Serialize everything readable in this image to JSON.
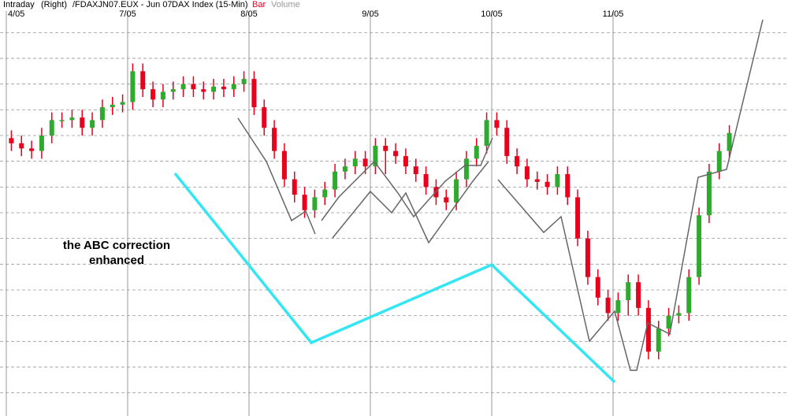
{
  "chart_data": {
    "type": "candlestick",
    "header": [
      "Intraday",
      "(Right)",
      "/FDAXJN07.EUX - Jun 07",
      "DAX Index (15-Min)",
      "Bar",
      "Volume"
    ],
    "annotation": [
      "the ABC correction",
      "enhanced"
    ],
    "categories": [
      "4/05",
      null,
      null,
      null,
      null,
      null,
      null,
      null,
      null,
      null,
      null,
      null,
      "7/05",
      null,
      null,
      null,
      null,
      null,
      null,
      null,
      null,
      null,
      null,
      null,
      "8/05",
      null,
      null,
      null,
      null,
      null,
      null,
      null,
      null,
      null,
      null,
      null,
      "9/05",
      null,
      null,
      null,
      null,
      null,
      null,
      null,
      null,
      null,
      null,
      null,
      "10/05",
      null,
      null,
      null,
      null,
      null,
      null,
      null,
      null,
      null,
      null,
      null,
      "11/05",
      null,
      null,
      null,
      null,
      null,
      null,
      null,
      null,
      null,
      null,
      null
    ],
    "open": [
      7519,
      7517,
      7515,
      7514,
      7520,
      7526,
      7526,
      7527,
      7523,
      7526,
      7531,
      7532,
      7533,
      7545,
      7538,
      7534,
      7537,
      7538,
      7540,
      7538,
      7537,
      7539,
      7538,
      7540,
      7542,
      7531,
      7523,
      7514,
      7503,
      7497,
      7491,
      7496,
      7499,
      7506,
      7508,
      7511,
      7508,
      7516,
      7514,
      7512,
      7508,
      7505,
      7500,
      7496,
      7494,
      7503,
      7511,
      7516,
      7526,
      7523,
      7512,
      7508,
      7503,
      7502,
      7500,
      7505,
      7496,
      7480,
      7465,
      7457,
      7451,
      7456,
      7463,
      7453,
      7436,
      7445,
      7450,
      7451,
      7465,
      7489,
      7506,
      7514
    ],
    "high": [
      7522,
      7520,
      7518,
      7523,
      7529,
      7529,
      7530,
      7530,
      7529,
      7534,
      7535,
      7536,
      7548,
      7548,
      7541,
      7540,
      7541,
      7543,
      7543,
      7541,
      7542,
      7542,
      7543,
      7545,
      7545,
      7534,
      7526,
      7517,
      7506,
      7500,
      7499,
      7502,
      7509,
      7511,
      7514,
      7514,
      7519,
      7519,
      7517,
      7515,
      7511,
      7508,
      7503,
      7499,
      7506,
      7514,
      7519,
      7529,
      7529,
      7526,
      7515,
      7511,
      7506,
      7505,
      7508,
      7508,
      7499,
      7483,
      7468,
      7460,
      7459,
      7466,
      7466,
      7456,
      7448,
      7453,
      7454,
      7468,
      7492,
      7509,
      7517,
      7524
    ],
    "low": [
      7514,
      7512,
      7511,
      7511,
      7517,
      7523,
      7523,
      7520,
      7520,
      7523,
      7528,
      7529,
      7530,
      7535,
      7531,
      7531,
      7534,
      7535,
      7535,
      7534,
      7534,
      7535,
      7535,
      7537,
      7528,
      7520,
      7511,
      7500,
      7494,
      7488,
      7488,
      7493,
      7496,
      7503,
      7505,
      7505,
      7505,
      7505,
      7509,
      7505,
      7502,
      7497,
      7493,
      7491,
      7491,
      7500,
      7508,
      7513,
      7520,
      7509,
      7505,
      7500,
      7499,
      7497,
      7497,
      7493,
      7477,
      7462,
      7454,
      7448,
      7448,
      7450,
      7450,
      7433,
      7433,
      7442,
      7447,
      7448,
      7462,
      7486,
      7503,
      7511
    ],
    "close": [
      7517,
      7515,
      7514,
      7520,
      7526,
      7526,
      7527,
      7523,
      7526,
      7531,
      7532,
      7533,
      7545,
      7538,
      7534,
      7537,
      7538,
      7540,
      7538,
      7537,
      7539,
      7538,
      7540,
      7542,
      7531,
      7523,
      7514,
      7503,
      7497,
      7491,
      7496,
      7499,
      7506,
      7508,
      7511,
      7508,
      7516,
      7514,
      7512,
      7508,
      7505,
      7500,
      7496,
      7494,
      7503,
      7511,
      7516,
      7526,
      7523,
      7512,
      7508,
      7503,
      7502,
      7500,
      7505,
      7496,
      7480,
      7465,
      7457,
      7451,
      7456,
      7463,
      7453,
      7436,
      7445,
      7450,
      7451,
      7465,
      7489,
      7506,
      7514,
      7521
    ],
    "up_color": "#2eaa2e",
    "down_color": "#e8001c",
    "ylim": [
      7411,
      7569
    ],
    "ygrid": [
      7420,
      7430,
      7440,
      7450,
      7460,
      7470,
      7480,
      7490,
      7500,
      7510,
      7520,
      7530,
      7540,
      7550,
      7560
    ],
    "grid": true
  }
}
